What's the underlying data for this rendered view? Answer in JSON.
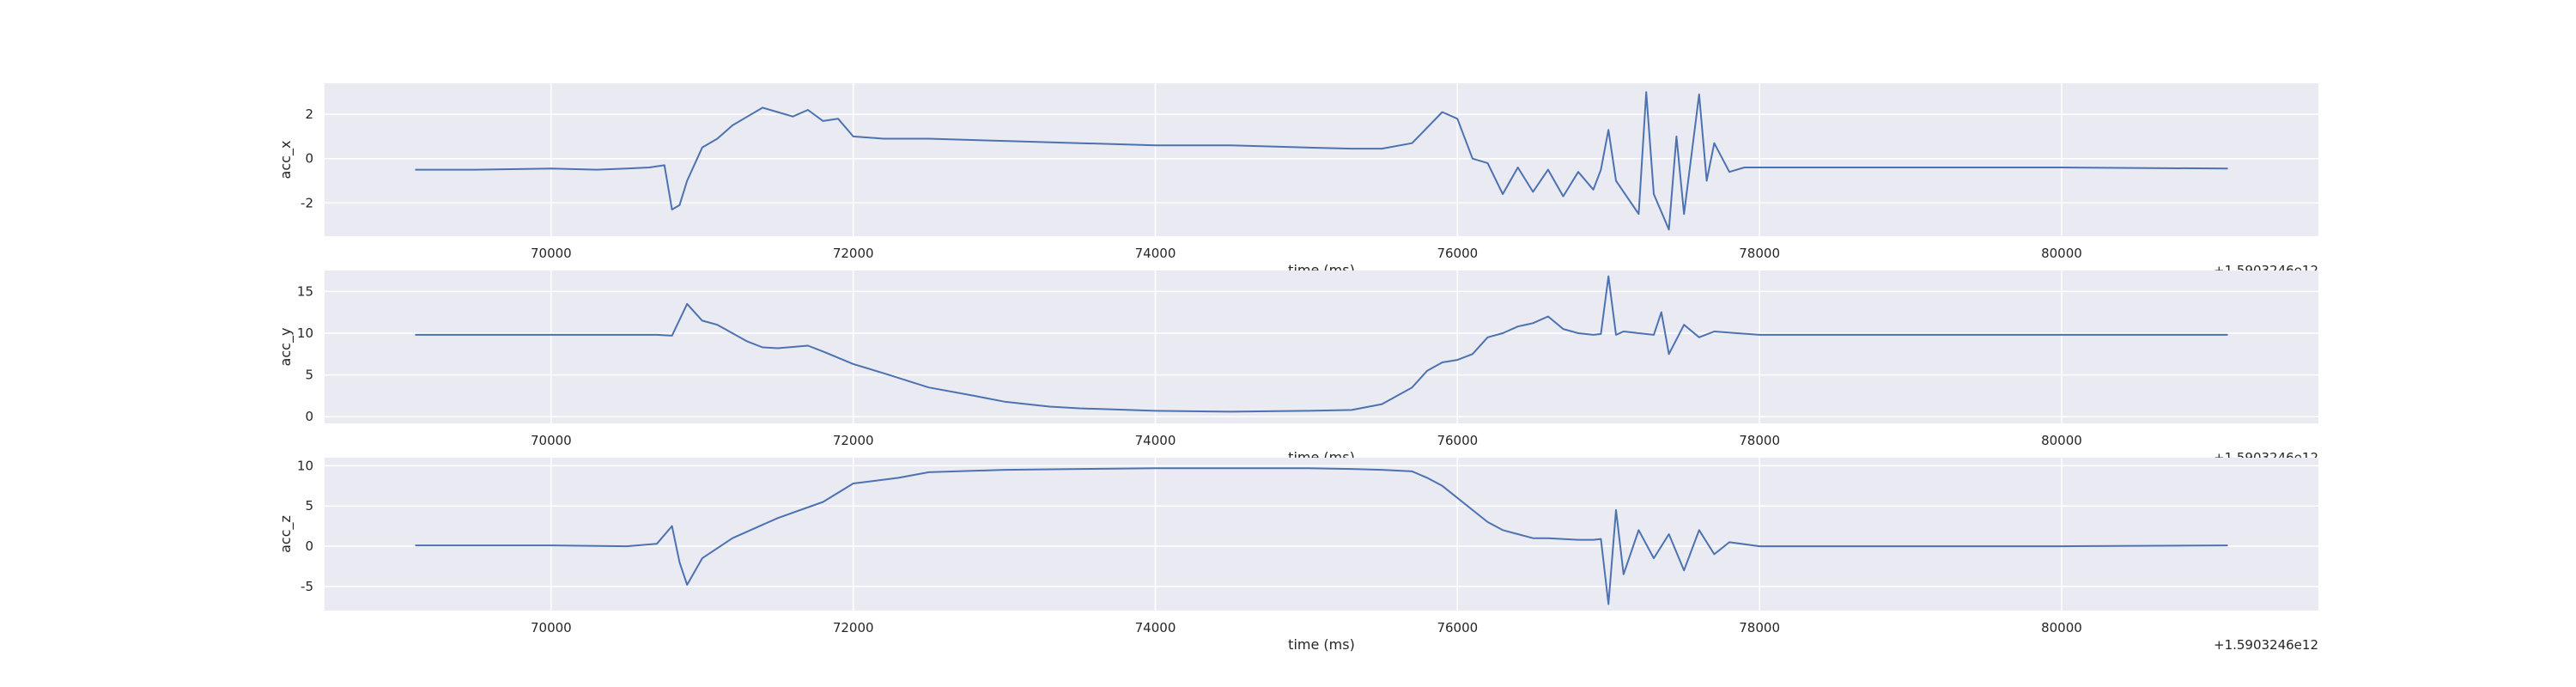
{
  "style": {
    "background": "#ffffff",
    "axes_bg": "#eaeaf2",
    "grid": "#ffffff",
    "line": "#4c72b0",
    "text": "#262626"
  },
  "chart_data": [
    {
      "type": "line",
      "x_offset_label": "+1.5903246e12",
      "xlabel": "time (ms)",
      "ylabel": "acc_x",
      "xlim": [
        68500,
        81700
      ],
      "ylim": [
        -3.5,
        3.4
      ],
      "x_ticks": [
        70000,
        72000,
        74000,
        76000,
        78000,
        80000
      ],
      "y_ticks": [
        -2,
        0,
        2
      ],
      "grid": true,
      "series": [
        {
          "x": [
            69100,
            69500,
            70000,
            70300,
            70500,
            70650,
            70750,
            70800,
            70850,
            70900,
            71000,
            71100,
            71200,
            71300,
            71400,
            71500,
            71600,
            71700,
            71800,
            71900,
            72000,
            72200,
            72500,
            73000,
            73500,
            74000,
            74500,
            75000,
            75300,
            75500,
            75700,
            75800,
            75900,
            76000,
            76100,
            76200,
            76300,
            76400,
            76500,
            76600,
            76700,
            76800,
            76900,
            76950,
            77000,
            77050,
            77100,
            77200,
            77250,
            77300,
            77400,
            77450,
            77500,
            77600,
            77650,
            77700,
            77800,
            77900,
            78000,
            78500,
            79000,
            80000,
            81100
          ],
          "y": [
            -0.5,
            -0.5,
            -0.45,
            -0.5,
            -0.45,
            -0.4,
            -0.3,
            -2.3,
            -2.1,
            -1.0,
            0.5,
            0.9,
            1.5,
            1.9,
            2.3,
            2.1,
            1.9,
            2.2,
            1.7,
            1.8,
            1.0,
            0.9,
            0.9,
            0.8,
            0.7,
            0.6,
            0.6,
            0.5,
            0.45,
            0.45,
            0.7,
            1.4,
            2.1,
            1.8,
            0.0,
            -0.2,
            -1.6,
            -0.4,
            -1.5,
            -0.5,
            -1.7,
            -0.6,
            -1.4,
            -0.5,
            1.3,
            -1.0,
            -1.5,
            -2.5,
            3.0,
            -1.6,
            -3.2,
            1.0,
            -2.5,
            2.9,
            -1.0,
            0.7,
            -0.6,
            -0.4,
            -0.4,
            -0.4,
            -0.4,
            -0.4,
            -0.45
          ]
        }
      ]
    },
    {
      "type": "line",
      "x_offset_label": "+1.5903246e12",
      "xlabel": "time (ms)",
      "ylabel": "acc_y",
      "xlim": [
        68500,
        81700
      ],
      "ylim": [
        -0.8,
        17.5
      ],
      "x_ticks": [
        70000,
        72000,
        74000,
        76000,
        78000,
        80000
      ],
      "y_ticks": [
        0,
        5,
        10,
        15
      ],
      "grid": true,
      "series": [
        {
          "x": [
            69100,
            70000,
            70700,
            70800,
            70900,
            71000,
            71100,
            71200,
            71300,
            71400,
            71500,
            71700,
            71800,
            72000,
            72200,
            72500,
            72800,
            73000,
            73300,
            73500,
            74000,
            74500,
            75000,
            75300,
            75500,
            75700,
            75800,
            75900,
            76000,
            76100,
            76200,
            76300,
            76400,
            76500,
            76600,
            76700,
            76800,
            76900,
            76950,
            77000,
            77050,
            77100,
            77300,
            77350,
            77400,
            77500,
            77600,
            77700,
            78000,
            79000,
            80000,
            81100
          ],
          "y": [
            9.8,
            9.8,
            9.8,
            9.7,
            13.5,
            11.5,
            11.0,
            10.0,
            9.0,
            8.3,
            8.2,
            8.5,
            7.8,
            6.3,
            5.2,
            3.5,
            2.5,
            1.8,
            1.2,
            1.0,
            0.7,
            0.6,
            0.7,
            0.8,
            1.5,
            3.5,
            5.5,
            6.5,
            6.8,
            7.5,
            9.5,
            10.0,
            10.8,
            11.2,
            12.0,
            10.5,
            10.0,
            9.8,
            9.9,
            16.8,
            9.8,
            10.2,
            9.8,
            12.5,
            7.5,
            11.0,
            9.5,
            10.2,
            9.8,
            9.8,
            9.8,
            9.8
          ]
        }
      ]
    },
    {
      "type": "line",
      "x_offset_label": "+1.5903246e12",
      "xlabel": "time (ms)",
      "ylabel": "acc_z",
      "xlim": [
        68500,
        81700
      ],
      "ylim": [
        -8.0,
        11.0
      ],
      "x_ticks": [
        70000,
        72000,
        74000,
        76000,
        78000,
        80000
      ],
      "y_ticks": [
        -5,
        0,
        5,
        10
      ],
      "grid": true,
      "series": [
        {
          "x": [
            69100,
            70000,
            70500,
            70700,
            70800,
            70850,
            70900,
            71000,
            71200,
            71500,
            71800,
            72000,
            72300,
            72500,
            73000,
            73500,
            74000,
            74500,
            75000,
            75300,
            75500,
            75700,
            75800,
            75900,
            76000,
            76100,
            76200,
            76300,
            76400,
            76500,
            76600,
            76800,
            76900,
            76950,
            77000,
            77050,
            77100,
            77200,
            77300,
            77400,
            77500,
            77600,
            77700,
            77800,
            78000,
            79000,
            80000,
            81100
          ],
          "y": [
            0.1,
            0.1,
            0.0,
            0.3,
            2.5,
            -2.0,
            -4.8,
            -1.5,
            1.0,
            3.5,
            5.5,
            7.8,
            8.5,
            9.2,
            9.5,
            9.6,
            9.7,
            9.7,
            9.7,
            9.6,
            9.5,
            9.3,
            8.5,
            7.5,
            6.0,
            4.5,
            3.0,
            2.0,
            1.5,
            1.0,
            1.0,
            0.8,
            0.8,
            0.9,
            -7.2,
            4.5,
            -3.5,
            2.0,
            -1.5,
            1.5,
            -3.0,
            2.0,
            -1.0,
            0.5,
            0.0,
            0.0,
            0.0,
            0.1
          ]
        }
      ]
    }
  ]
}
